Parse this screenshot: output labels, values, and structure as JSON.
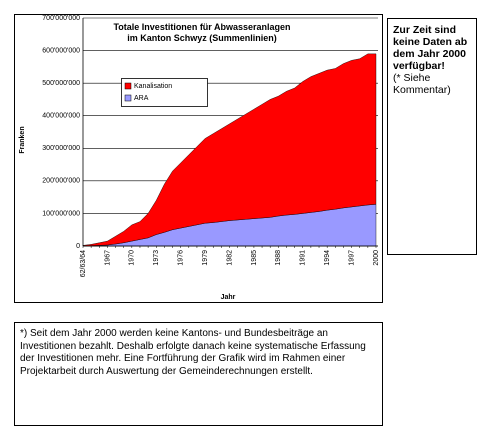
{
  "chart_data": {
    "type": "area",
    "stacked": true,
    "title": "Totale Investitionen für Abwasseranlagen im Kanton Schwyz (Summenlinien)",
    "y_label": "Franken",
    "x_label": "Jahr",
    "categories": [
      "62/63/64",
      null,
      null,
      "1967",
      null,
      null,
      "1970",
      null,
      null,
      "1973",
      null,
      null,
      "1976",
      null,
      null,
      "1979",
      null,
      null,
      "1982",
      null,
      null,
      "1985",
      null,
      null,
      "1988",
      null,
      null,
      "1991",
      null,
      null,
      "1994",
      null,
      null,
      "1997",
      null,
      null,
      "2000"
    ],
    "series": [
      {
        "name": "Kanalisation",
        "color": "#ff0000",
        "values": [
          2000000,
          4000000,
          8000000,
          12000000,
          24000000,
          35000000,
          50000000,
          55000000,
          75000000,
          105000000,
          148000000,
          180000000,
          200000000,
          220000000,
          240000000,
          260000000,
          273000000,
          285000000,
          297000000,
          310000000,
          323000000,
          336000000,
          349000000,
          362000000,
          368000000,
          380000000,
          388000000,
          405000000,
          417000000,
          424000000,
          430000000,
          432000000,
          443000000,
          450000000,
          452000000,
          464000000,
          462000000
        ]
      },
      {
        "name": "ARA",
        "color": "#9999ff",
        "values": [
          0,
          1000000,
          2000000,
          3000000,
          6000000,
          10000000,
          15000000,
          20000000,
          25000000,
          35000000,
          42000000,
          50000000,
          55000000,
          60000000,
          65000000,
          70000000,
          72000000,
          75000000,
          78000000,
          80000000,
          82000000,
          84000000,
          86000000,
          88000000,
          92000000,
          95000000,
          97000000,
          100000000,
          103000000,
          106000000,
          110000000,
          113000000,
          117000000,
          120000000,
          123000000,
          126000000,
          128000000
        ]
      }
    ],
    "ylim": [
      0,
      700000000
    ],
    "yticks": [
      0,
      {
        "value": 100000000,
        "label": "100'000'000"
      },
      {
        "value": 200000000,
        "label": "200'000'000"
      },
      {
        "value": 300000000,
        "label": "300'000'000"
      },
      {
        "value": 400000000,
        "label": "400'000'000"
      },
      {
        "value": 500000000,
        "label": "500'000'000"
      },
      {
        "value": 600000000,
        "label": "600'000'000"
      },
      {
        "value": 700000000,
        "label": "700'000'000"
      }
    ],
    "grid": true
  },
  "side_note": {
    "bold": "Zur Zeit sind keine Daten ab dem Jahr 2000 verfügbar!",
    "normal": "(* Siehe Kommentar)"
  },
  "footnote": "*) Seit dem Jahr 2000 werden keine Kantons- und Bundesbeiträge an Investitionen bezahlt. Deshalb erfolgte danach keine systematische Erfassung der Investitionen mehr. Eine Fortführung der Grafik wird im Rahmen einer Projektarbeit durch Auswertung der Gemeinderechnungen erstellt."
}
